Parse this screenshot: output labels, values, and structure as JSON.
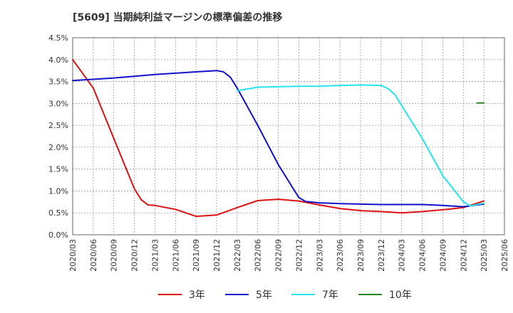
{
  "chart_data": {
    "type": "line",
    "title": "[5609]  当期純利益マージンの標準偏差の推移",
    "xlabel": "",
    "ylabel": "",
    "ylim": [
      0,
      4.5
    ],
    "y_ticks": [
      "0.0%",
      "0.5%",
      "1.0%",
      "1.5%",
      "2.0%",
      "2.5%",
      "3.0%",
      "3.5%",
      "4.0%",
      "4.5%"
    ],
    "x_ticks": [
      "2020/03",
      "2020/06",
      "2020/09",
      "2020/12",
      "2021/03",
      "2021/06",
      "2021/09",
      "2021/12",
      "2022/03",
      "2022/06",
      "2022/09",
      "2022/12",
      "2023/03",
      "2023/06",
      "2023/09",
      "2023/12",
      "2024/03",
      "2024/06",
      "2024/09",
      "2024/12",
      "2025/03",
      "2025/06"
    ],
    "grid": true,
    "legend_position": "bottom",
    "series": [
      {
        "name": "3年",
        "color": "#dd1111",
        "points": [
          [
            "2020/03",
            4.0
          ],
          [
            "2020/06",
            3.35
          ],
          [
            "2020/09",
            2.2
          ],
          [
            "2020/12",
            1.05
          ],
          [
            "2021/01",
            0.8
          ],
          [
            "2021/02",
            0.68
          ],
          [
            "2021/03",
            0.67
          ],
          [
            "2021/06",
            0.58
          ],
          [
            "2021/09",
            0.42
          ],
          [
            "2021/12",
            0.45
          ],
          [
            "2022/03",
            0.62
          ],
          [
            "2022/06",
            0.78
          ],
          [
            "2022/09",
            0.81
          ],
          [
            "2022/12",
            0.77
          ],
          [
            "2023/03",
            0.68
          ],
          [
            "2023/06",
            0.6
          ],
          [
            "2023/09",
            0.55
          ],
          [
            "2023/12",
            0.53
          ],
          [
            "2024/03",
            0.5
          ],
          [
            "2024/06",
            0.53
          ],
          [
            "2024/09",
            0.57
          ],
          [
            "2024/12",
            0.62
          ],
          [
            "2025/03",
            0.77
          ]
        ]
      },
      {
        "name": "5年",
        "color": "#1111cc",
        "points": [
          [
            "2020/03",
            3.52
          ],
          [
            "2020/06",
            3.55
          ],
          [
            "2020/09",
            3.58
          ],
          [
            "2020/12",
            3.62
          ],
          [
            "2021/03",
            3.66
          ],
          [
            "2021/06",
            3.69
          ],
          [
            "2021/09",
            3.72
          ],
          [
            "2021/12",
            3.75
          ],
          [
            "2022/01",
            3.72
          ],
          [
            "2022/02",
            3.6
          ],
          [
            "2022/03",
            3.35
          ],
          [
            "2022/06",
            2.5
          ],
          [
            "2022/09",
            1.6
          ],
          [
            "2022/12",
            0.85
          ],
          [
            "2023/01",
            0.76
          ],
          [
            "2023/03",
            0.73
          ],
          [
            "2023/06",
            0.71
          ],
          [
            "2023/09",
            0.7
          ],
          [
            "2023/12",
            0.69
          ],
          [
            "2024/03",
            0.69
          ],
          [
            "2024/06",
            0.69
          ],
          [
            "2024/09",
            0.67
          ],
          [
            "2024/12",
            0.64
          ],
          [
            "2025/03",
            0.7
          ]
        ]
      },
      {
        "name": "7年",
        "color": "#22e5f0",
        "points": [
          [
            "2022/03",
            3.29
          ],
          [
            "2022/06",
            3.37
          ],
          [
            "2022/09",
            3.38
          ],
          [
            "2022/12",
            3.39
          ],
          [
            "2023/03",
            3.39
          ],
          [
            "2023/06",
            3.41
          ],
          [
            "2023/09",
            3.42
          ],
          [
            "2023/12",
            3.41
          ],
          [
            "2024/01",
            3.34
          ],
          [
            "2024/02",
            3.2
          ],
          [
            "2024/03",
            2.95
          ],
          [
            "2024/06",
            2.2
          ],
          [
            "2024/09",
            1.35
          ],
          [
            "2024/12",
            0.75
          ],
          [
            "2025/01",
            0.66
          ],
          [
            "2025/03",
            0.72
          ]
        ]
      },
      {
        "name": "10年",
        "color": "#228822",
        "points": [
          [
            "2025/02",
            3.01
          ],
          [
            "2025/03",
            3.01
          ]
        ]
      }
    ]
  }
}
